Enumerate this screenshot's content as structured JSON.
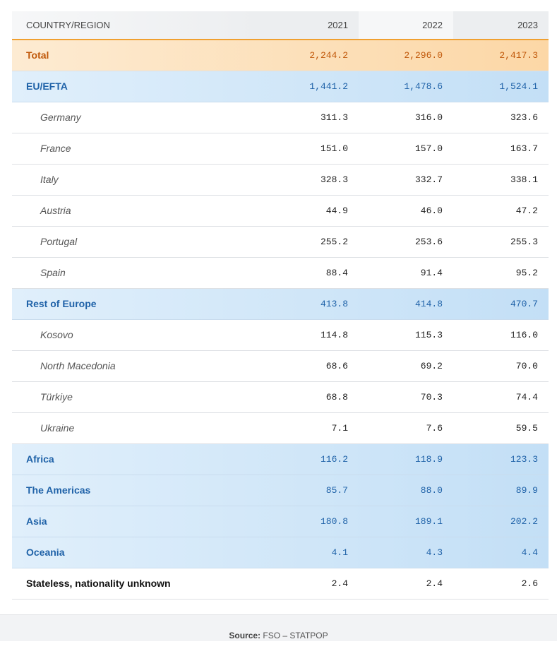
{
  "header": {
    "columns": [
      "COUNTRY/REGION",
      "2021",
      "2022",
      "2023"
    ]
  },
  "rows": [
    [
      "Total",
      "2,244.2",
      "2,296.0",
      "2,417.3"
    ],
    [
      "EU/EFTA",
      "1,441.2",
      "1,478.6",
      "1,524.1"
    ],
    [
      "Germany",
      "311.3",
      "316.0",
      "323.6"
    ],
    [
      "France",
      "151.0",
      "157.0",
      "163.7"
    ],
    [
      "Italy",
      "328.3",
      "332.7",
      "338.1"
    ],
    [
      "Austria",
      "44.9",
      "46.0",
      "47.2"
    ],
    [
      "Portugal",
      "255.2",
      "253.6",
      "255.3"
    ],
    [
      "Spain",
      "88.4",
      "91.4",
      "95.2"
    ],
    [
      "Rest of Europe",
      "413.8",
      "414.8",
      "470.7"
    ],
    [
      "Kosovo",
      "114.8",
      "115.3",
      "116.0"
    ],
    [
      "North Macedonia",
      "68.6",
      "69.2",
      "70.0"
    ],
    [
      "Türkiye",
      "68.8",
      "70.3",
      "74.4"
    ],
    [
      "Ukraine",
      "7.1",
      "7.6",
      "59.5"
    ],
    [
      "Africa",
      "116.2",
      "118.9",
      "123.3"
    ],
    [
      "The Americas",
      "85.7",
      "88.0",
      "89.9"
    ],
    [
      "Asia",
      "180.8",
      "189.1",
      "202.2"
    ],
    [
      "Oceania",
      "4.1",
      "4.3",
      "4.4"
    ],
    [
      "Stateless, nationality unknown",
      "2.4",
      "2.4",
      "2.6"
    ]
  ],
  "footer": {
    "label": "Source:",
    "text": "FSO – STATPOP"
  }
}
